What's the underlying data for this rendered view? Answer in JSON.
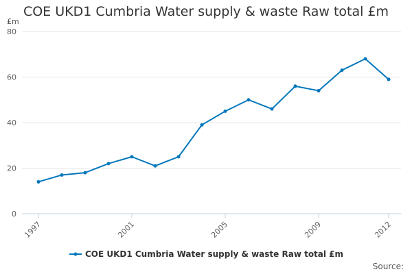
{
  "chart_data": {
    "type": "line",
    "title": "COE UKD1 Cumbria Water supply & waste Raw total £m",
    "ylabel": "£m",
    "xlabel": "",
    "x": [
      1997,
      1998,
      1999,
      2000,
      2001,
      2002,
      2003,
      2004,
      2005,
      2006,
      2007,
      2008,
      2009,
      2010,
      2011,
      2012
    ],
    "x_ticks": [
      "1997",
      "2001",
      "2005",
      "2009",
      "2012"
    ],
    "y_ticks": [
      "0",
      "20",
      "40",
      "60",
      "80"
    ],
    "ylim": [
      0,
      80
    ],
    "xlim": [
      1997,
      2012
    ],
    "grid": true,
    "legend_position": "bottom",
    "series": [
      {
        "name": "COE UKD1 Cumbria Water supply & waste Raw total £m",
        "color": "#0077bb",
        "values": [
          14,
          17,
          18,
          22,
          25,
          21,
          25,
          39,
          45,
          50,
          46,
          56,
          54,
          63,
          68,
          59
        ]
      }
    ]
  },
  "legend": {
    "label": "COE UKD1 Cumbria Water supply & waste Raw total £m"
  },
  "source": {
    "label": "Source:"
  }
}
